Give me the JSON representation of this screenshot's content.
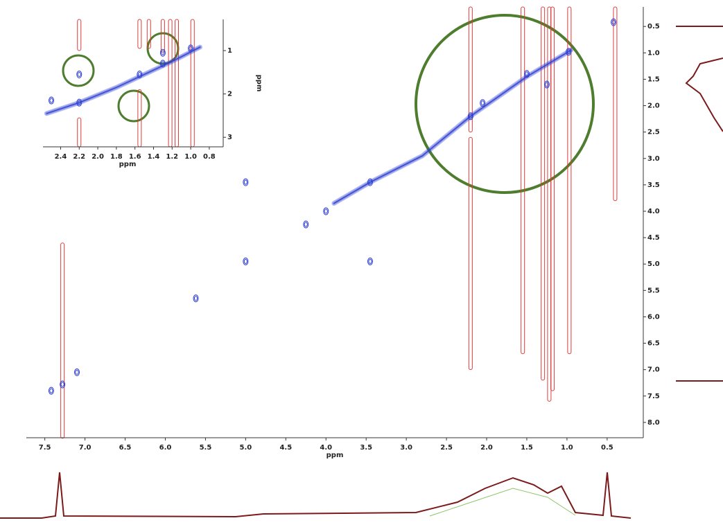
{
  "chart_data": [
    {
      "type": "contour",
      "xlabel": "ppm",
      "xlim": [
        7.73,
        0.05
      ],
      "ylim": [
        0.13,
        8.29
      ],
      "xticks": [
        7.5,
        {
          "value": 7,
          "label": "7.0"
        },
        6.5,
        {
          "value": 6,
          "label": "6.0"
        },
        5.5,
        {
          "value": 5,
          "label": "5.0"
        },
        4.5,
        {
          "value": 4,
          "label": "4.0"
        },
        3.5,
        {
          "value": 3,
          "label": "3.0"
        },
        2.5,
        {
          "value": 2,
          "label": "2.0"
        },
        1.5,
        {
          "value": 1,
          "label": "1.0"
        },
        0.5
      ],
      "yticks": [
        0.5,
        {
          "value": 1,
          "label": "1.0"
        },
        1.5,
        {
          "value": 2,
          "label": "2.0"
        },
        2.5,
        {
          "value": 3,
          "label": "3.0"
        },
        3.5,
        {
          "value": 4,
          "label": "4.0"
        },
        4.5,
        {
          "value": 5,
          "label": "5.0"
        },
        5.5,
        {
          "value": 6,
          "label": "6.0"
        },
        6.5,
        {
          "value": 7,
          "label": "7.0"
        },
        7.5,
        {
          "value": 8,
          "label": "8.0"
        }
      ],
      "diagonal": {
        "x": [
          3.9,
          3.45,
          2.8,
          2.2,
          1.5,
          0.95
        ],
        "y": [
          3.85,
          3.45,
          2.95,
          2.2,
          1.45,
          0.95
        ],
        "color": "#2d3fd0"
      },
      "peaks": {
        "x": [
          0.42,
          0.98,
          1.5,
          2.2,
          2.05,
          3.45,
          4.0,
          4.25,
          5.0,
          5.0,
          3.45,
          5.62,
          7.28,
          7.1,
          7.42,
          1.25
        ],
        "y": [
          0.42,
          0.98,
          1.4,
          2.2,
          1.95,
          3.45,
          4.0,
          4.25,
          3.45,
          4.95,
          4.95,
          5.65,
          7.28,
          7.05,
          7.4,
          1.6
        ],
        "color": "#2d3fd0"
      },
      "streaks": {
        "x": [
          7.28,
          2.2,
          2.2,
          1.55,
          1.3,
          1.22,
          1.18,
          0.97,
          0.4
        ],
        "y1": [
          4.6,
          0.13,
          2.6,
          0.13,
          0.13,
          0.13,
          0.13,
          0.13,
          0.13
        ],
        "y2": [
          8.3,
          2.5,
          7.0,
          6.7,
          7.2,
          7.6,
          7.4,
          6.7,
          3.8
        ],
        "color": "#e03a3a"
      }
    },
    {
      "type": "contour",
      "xlabel": "ppm",
      "ylabel": "ppm",
      "xlim": [
        2.59,
        0.65
      ],
      "ylim": [
        0.28,
        3.22
      ],
      "xticks": [
        2.4,
        2.2,
        {
          "value": 2,
          "label": "2.0"
        },
        1.8,
        1.6,
        1.4,
        1.2,
        {
          "value": 1,
          "label": "1.0"
        },
        0.8
      ],
      "yticks": [
        1,
        2,
        3
      ],
      "diagonal": {
        "x": [
          2.55,
          2.2,
          1.8,
          1.5,
          1.2,
          0.9
        ],
        "y": [
          2.45,
          2.2,
          1.85,
          1.55,
          1.25,
          0.92
        ],
        "color": "#2d3fd0"
      },
      "peaks": {
        "x": [
          2.2,
          1.55,
          1.3,
          1.0,
          2.2,
          1.3,
          2.5
        ],
        "y": [
          2.2,
          1.55,
          1.3,
          0.95,
          1.55,
          1.05,
          2.15
        ],
        "color": "#2d3fd0"
      },
      "streaks": {
        "x": [
          2.2,
          2.2,
          1.55,
          1.45,
          1.3,
          1.22,
          1.15,
          0.98,
          1.55
        ],
        "y1": [
          0.28,
          2.55,
          0.28,
          0.28,
          0.28,
          0.28,
          0.28,
          0.28,
          1.9
        ],
        "y2": [
          1.0,
          3.22,
          0.95,
          0.95,
          1.05,
          3.22,
          3.22,
          3.22,
          3.22
        ],
        "color": "#e03a3a"
      }
    }
  ]
}
